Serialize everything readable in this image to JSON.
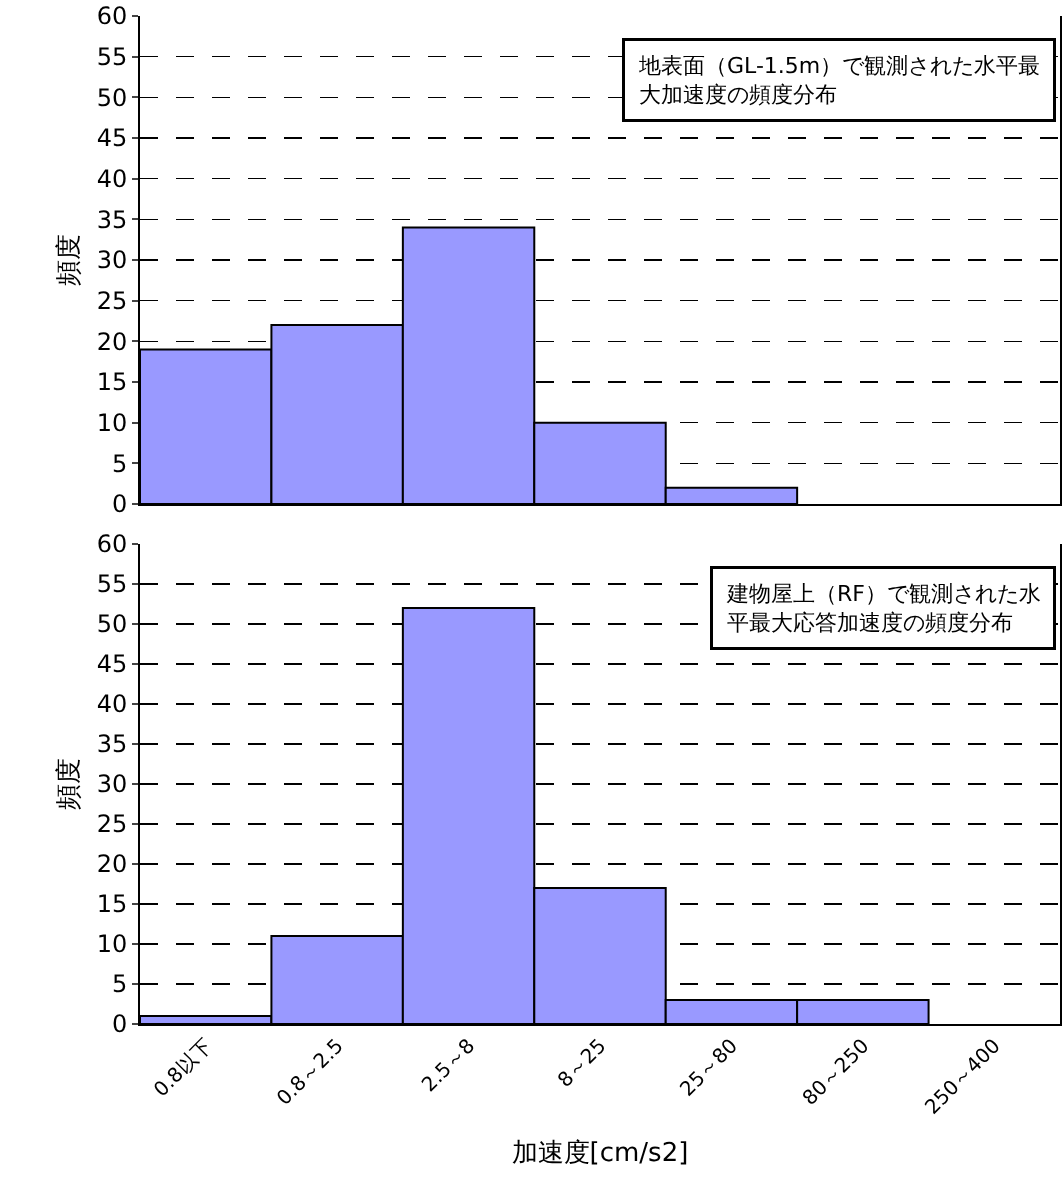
{
  "chart_data": [
    {
      "type": "bar",
      "categories": [
        null,
        null,
        null,
        null,
        null,
        null,
        null
      ],
      "values": [
        19,
        22,
        34,
        10,
        2,
        0,
        0
      ],
      "color": "#9999ff",
      "ylim": [
        0,
        60
      ],
      "yticks": [
        0,
        5,
        10,
        15,
        20,
        25,
        30,
        35,
        40,
        45,
        50,
        55,
        60
      ],
      "grid": "y",
      "ylabel": "頻度",
      "annotations": [
        "地表面（GL-1.5m）で観測された水平最大加速度の頻度分布"
      ]
    },
    {
      "type": "bar",
      "categories": [
        "0.8以下",
        "0.8～2.5",
        "2.5～8",
        "8～25",
        "25～80",
        "80～250",
        "250～400"
      ],
      "values": [
        1,
        11,
        52,
        17,
        3,
        3,
        0
      ],
      "color": "#9999ff",
      "ylim": [
        0,
        60
      ],
      "yticks": [
        0,
        5,
        10,
        15,
        20,
        25,
        30,
        35,
        40,
        45,
        50,
        55,
        60
      ],
      "grid": "y",
      "ylabel": "頻度",
      "xlabel": "加速度[cm/s2]",
      "annotations": [
        "建物屋上（RF）で観測された水平最大応答加速度の頻度分布"
      ]
    }
  ]
}
